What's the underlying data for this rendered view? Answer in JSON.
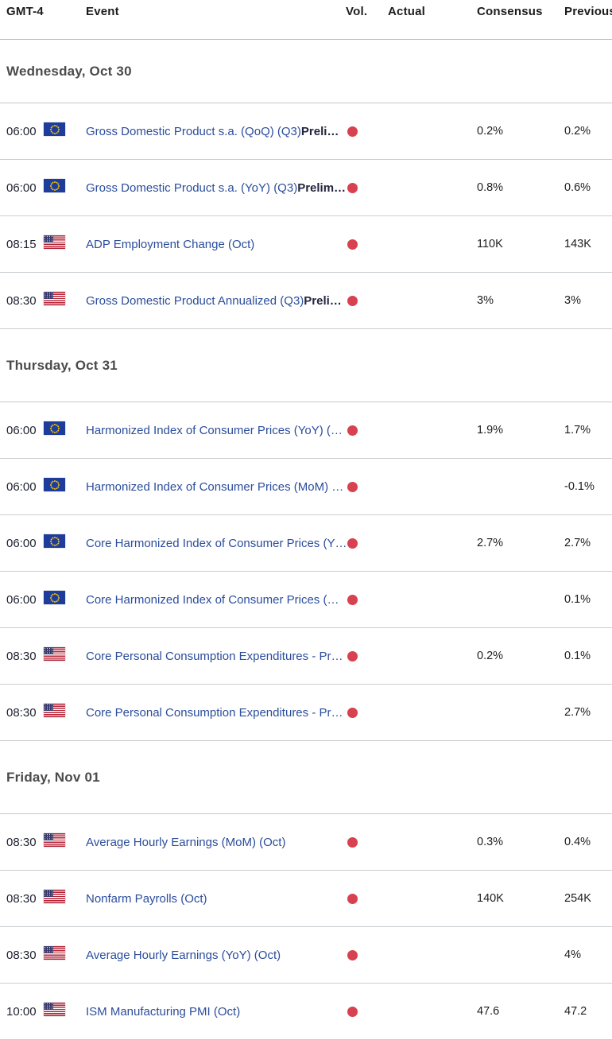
{
  "colors": {
    "event_link": "#2b4d9c",
    "event_bold": "#22253e",
    "volatility_high_dot": "#d8414f",
    "eu_flag_blue": "#1e3c9b",
    "us_flag_red": "#b22234",
    "us_flag_canton": "#3c3b6e",
    "divider": "#c9cdd0"
  },
  "header": {
    "columns": [
      "GMT-4",
      "Event",
      "Vol.",
      "Actual",
      "Consensus",
      "Previous"
    ]
  },
  "sections": [
    {
      "label": "Wednesday, Oct 30",
      "rows": [
        {
          "time": "06:00",
          "country": "eu",
          "event": "Gross Domestic Product s.a. (QoQ) (Q3)",
          "event_suffix": "Preli…",
          "vol": "high",
          "actual": "",
          "consensus": "0.2%",
          "previous": "0.2%"
        },
        {
          "time": "06:00",
          "country": "eu",
          "event": "Gross Domestic Product s.a. (YoY) (Q3)",
          "event_suffix": "Prelim…",
          "vol": "high",
          "actual": "",
          "consensus": "0.8%",
          "previous": "0.6%"
        },
        {
          "time": "08:15",
          "country": "us",
          "event": "ADP Employment Change (Oct)",
          "event_suffix": "",
          "vol": "high",
          "actual": "",
          "consensus": "110K",
          "previous": "143K"
        },
        {
          "time": "08:30",
          "country": "us",
          "event": "Gross Domestic Product Annualized (Q3)",
          "event_suffix": "Preli…",
          "vol": "high",
          "actual": "",
          "consensus": "3%",
          "previous": "3%"
        }
      ]
    },
    {
      "label": "Thursday, Oct 31",
      "rows": [
        {
          "time": "06:00",
          "country": "eu",
          "event": "Harmonized Index of Consumer Prices (YoY) (…",
          "event_suffix": "",
          "vol": "high",
          "actual": "",
          "consensus": "1.9%",
          "previous": "1.7%"
        },
        {
          "time": "06:00",
          "country": "eu",
          "event": "Harmonized Index of Consumer Prices (MoM) …",
          "event_suffix": "",
          "vol": "high",
          "actual": "",
          "consensus": "",
          "previous": "-0.1%"
        },
        {
          "time": "06:00",
          "country": "eu",
          "event": "Core Harmonized Index of Consumer Prices (Y…",
          "event_suffix": "",
          "vol": "high",
          "actual": "",
          "consensus": "2.7%",
          "previous": "2.7%"
        },
        {
          "time": "06:00",
          "country": "eu",
          "event": "Core Harmonized Index of Consumer Prices (…",
          "event_suffix": "",
          "vol": "high",
          "actual": "",
          "consensus": "",
          "previous": "0.1%"
        },
        {
          "time": "08:30",
          "country": "us",
          "event": "Core Personal Consumption Expenditures - Pr…",
          "event_suffix": "",
          "vol": "high",
          "actual": "",
          "consensus": "0.2%",
          "previous": "0.1%"
        },
        {
          "time": "08:30",
          "country": "us",
          "event": "Core Personal Consumption Expenditures - Pr…",
          "event_suffix": "",
          "vol": "high",
          "actual": "",
          "consensus": "",
          "previous": "2.7%"
        }
      ]
    },
    {
      "label": "Friday, Nov 01",
      "rows": [
        {
          "time": "08:30",
          "country": "us",
          "event": "Average Hourly Earnings (MoM) (Oct)",
          "event_suffix": "",
          "vol": "high",
          "actual": "",
          "consensus": "0.3%",
          "previous": "0.4%"
        },
        {
          "time": "08:30",
          "country": "us",
          "event": "Nonfarm Payrolls (Oct)",
          "event_suffix": "",
          "vol": "high",
          "actual": "",
          "consensus": "140K",
          "previous": "254K"
        },
        {
          "time": "08:30",
          "country": "us",
          "event": "Average Hourly Earnings (YoY) (Oct)",
          "event_suffix": "",
          "vol": "high",
          "actual": "",
          "consensus": "",
          "previous": "4%"
        },
        {
          "time": "10:00",
          "country": "us",
          "event": "ISM Manufacturing PMI (Oct)",
          "event_suffix": "",
          "vol": "high",
          "actual": "",
          "consensus": "47.6",
          "previous": "47.2"
        }
      ]
    }
  ]
}
